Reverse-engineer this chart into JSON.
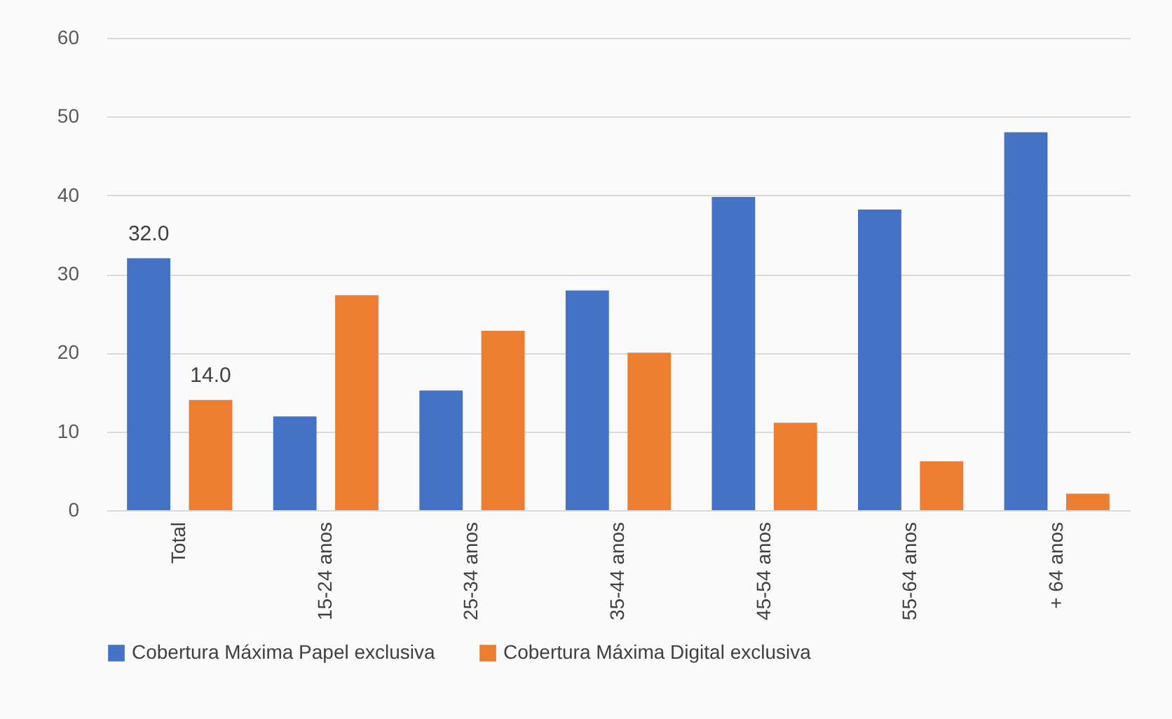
{
  "chart_data": {
    "type": "bar",
    "categories": [
      "Total",
      "15-24 anos",
      "25-34 anos",
      "35-44 anos",
      "45-54 anos",
      "55-64 anos",
      "+ 64 anos"
    ],
    "series": [
      {
        "name": "Cobertura Máxima Papel exclusiva",
        "color": "#4472c4",
        "values": [
          32.0,
          11.9,
          15.2,
          27.9,
          39.8,
          38.2,
          48.0
        ],
        "value_labels": [
          "32.0",
          null,
          null,
          null,
          null,
          null,
          null
        ]
      },
      {
        "name": "Cobertura Máxima Digital exclusiva",
        "color": "#ed7d31",
        "values": [
          14.0,
          27.3,
          22.8,
          20.0,
          11.1,
          6.2,
          2.1
        ],
        "value_labels": [
          "14.0",
          null,
          null,
          null,
          null,
          null,
          null
        ]
      }
    ],
    "ylim": [
      0,
      60
    ],
    "yticks": [
      0,
      10,
      20,
      30,
      40,
      50,
      60
    ],
    "grid": "y",
    "legend": "bottom"
  }
}
